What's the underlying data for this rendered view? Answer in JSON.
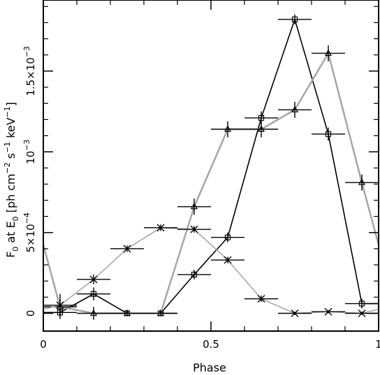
{
  "chart_data": {
    "type": "line",
    "xlabel": "Phase",
    "ylabel": {
      "base": "F",
      "base_sub": "0",
      "mid": " at E",
      "mid_sub": "0",
      "unit_open": " [ph cm",
      "exp1": "−2",
      "unit_s": " s",
      "exp2": "−1",
      "unit_kev": " keV",
      "exp3": "−1",
      "unit_close": "]"
    },
    "xlim": [
      0,
      1
    ],
    "ylim": [
      -0.00011,
      0.00194
    ],
    "grid": false,
    "legend": "none",
    "x_ticks": [
      {
        "value": 0,
        "label": "0"
      },
      {
        "value": 0.5,
        "label": "0.5"
      },
      {
        "value": 1,
        "label": "1"
      }
    ],
    "y_ticks": [
      {
        "value": 0,
        "mantissa": "0",
        "exponent": ""
      },
      {
        "value": 0.0005,
        "mantissa": "5×10",
        "exponent": "−4"
      },
      {
        "value": 0.001,
        "mantissa": "10",
        "exponent": "−3"
      },
      {
        "value": 0.0015,
        "mantissa": "1.5×10",
        "exponent": "−3"
      }
    ],
    "series": [
      {
        "marker": "square",
        "color": "#000000",
        "line_width": 1.6,
        "x": [
          -0.05,
          0.05,
          0.15,
          0.25,
          0.35,
          0.45,
          0.55,
          0.65,
          0.75,
          0.85,
          0.95,
          1.05
        ],
        "y": [
          5e-06,
          5e-06,
          0.00012,
          0.0,
          0.0,
          0.00024,
          0.00047,
          0.00121,
          0.00182,
          0.00111,
          6e-05,
          6e-05
        ],
        "yerr": [
          4e-05,
          4e-05,
          4e-05,
          1e-05,
          1e-05,
          3e-05,
          3e-05,
          4e-05,
          3e-05,
          4e-05,
          3e-05,
          3e-05
        ]
      },
      {
        "marker": "triangle",
        "color": "#a8a8a8",
        "line_width": 2.6,
        "x": [
          -0.05,
          0.05,
          0.15,
          0.25,
          0.35,
          0.45,
          0.55,
          0.65,
          0.75,
          0.85,
          0.95,
          1.05
        ],
        "y": [
          0.00081,
          4e-05,
          0.0,
          0.0,
          0.0,
          0.00066,
          0.00114,
          0.00114,
          0.00126,
          0.00161,
          0.00081,
          4e-05
        ],
        "yerr": [
          5e-05,
          5e-05,
          4e-05,
          1e-05,
          1e-05,
          5e-05,
          5e-05,
          5e-05,
          5e-05,
          5e-05,
          5e-05,
          5e-05
        ]
      },
      {
        "marker": "cross",
        "color": "#a8a8a8",
        "line_width": 1.6,
        "x": [
          -0.05,
          0.05,
          0.15,
          0.25,
          0.35,
          0.45,
          0.55,
          0.65,
          0.75,
          0.85,
          0.95,
          1.05
        ],
        "y": [
          0.0,
          5e-05,
          0.00021,
          0.0004,
          0.00053,
          0.00052,
          0.00033,
          9e-05,
          0.0,
          1e-05,
          0.0,
          5e-05
        ],
        "yerr": [
          3e-05,
          7e-05,
          3e-05,
          2e-05,
          2e-05,
          2e-05,
          2e-05,
          2e-05,
          1e-05,
          1e-05,
          1e-05,
          7e-05
        ]
      }
    ]
  }
}
